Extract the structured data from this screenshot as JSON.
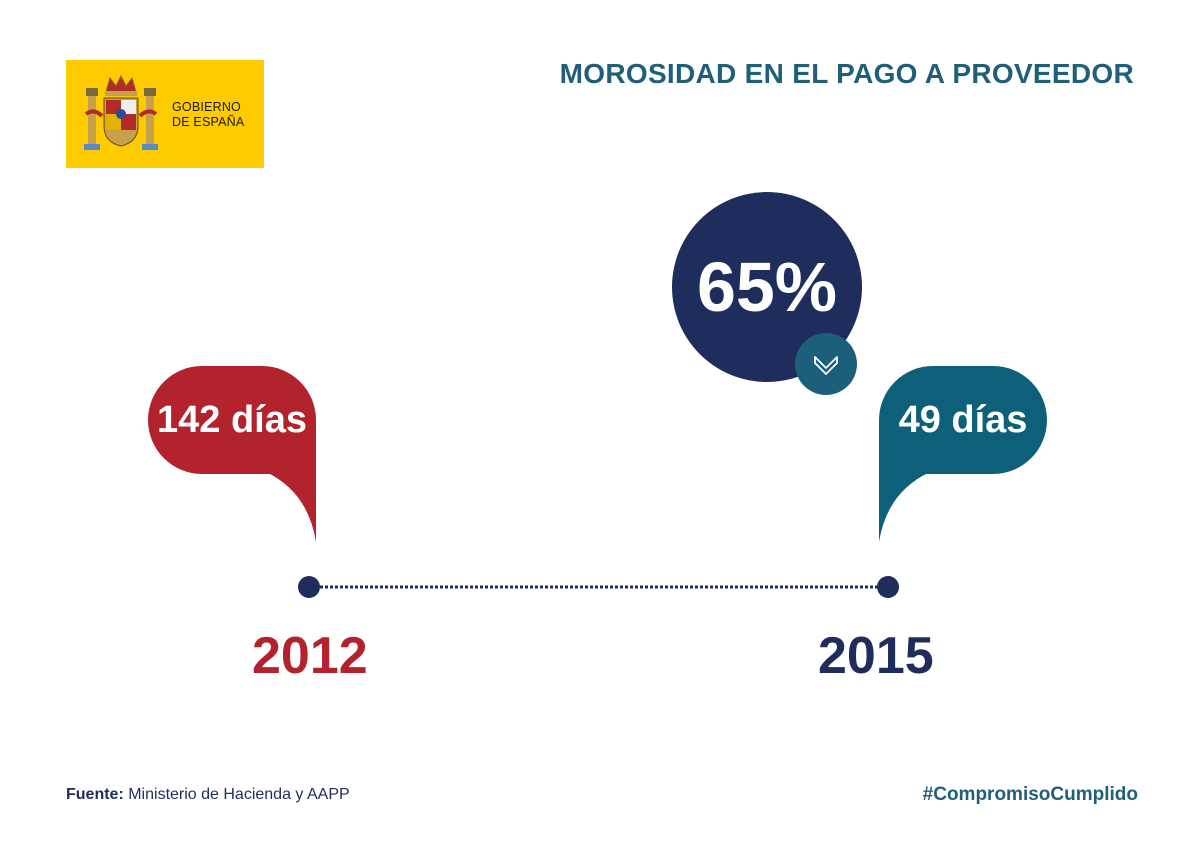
{
  "logo": {
    "line1": "GOBIERNO",
    "line2": "DE ESPAÑA"
  },
  "title": "MOROSIDAD EN EL PAGO A PROVEEDOR",
  "chart_data": {
    "type": "timeline",
    "title": "MOROSIDAD EN EL PAGO A PROVEEDOR",
    "categories": [
      "2012",
      "2015"
    ],
    "values": [
      142,
      49
    ],
    "value_labels": [
      "142 días",
      "49 días"
    ],
    "unit": "días",
    "change_label": "65%",
    "change_direction": "down"
  },
  "source": {
    "label": "Fuente:",
    "text": " Ministerio de Hacienda y AAPP"
  },
  "hashtag": "#CompromisoCumplido",
  "colors": {
    "red": "#b2232e",
    "navy": "#1e2d5c",
    "teal": "#0d5f7a",
    "yellow": "#fecb00"
  }
}
